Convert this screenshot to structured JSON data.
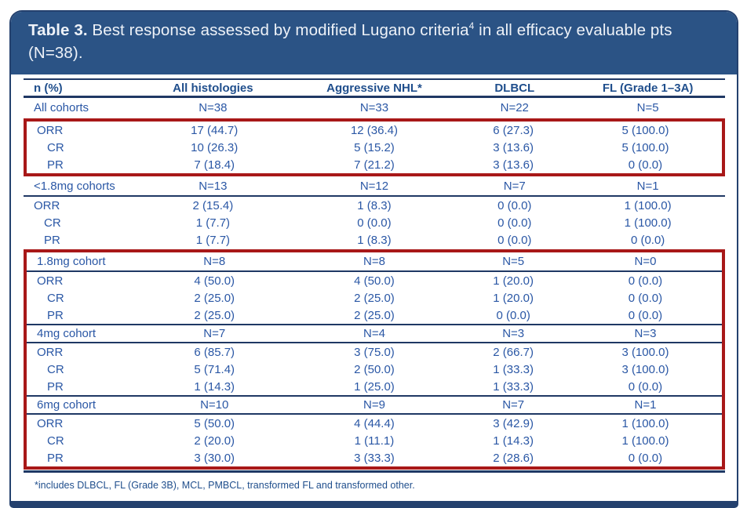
{
  "card": {
    "title": {
      "bold": "Table 3.",
      "before_sup": " Best response assessed by modified Lugano criteria",
      "sup": "4",
      "after_sup": " in all efficacy evaluable pts (N=38)."
    }
  },
  "table": {
    "columns": [
      "n (%)",
      "All histologies",
      "Aggressive NHL*",
      "DLBCL",
      "FL (Grade 1–3A)"
    ],
    "groups": [
      {
        "id": "all-cohorts",
        "n_row": [
          "All cohorts",
          "N=38",
          "N=33",
          "N=22",
          "N=5"
        ],
        "rows": [
          [
            "ORR",
            "17 (44.7)",
            "12 (36.4)",
            "6 (27.3)",
            "5 (100.0)"
          ],
          [
            "CR",
            "10 (26.3)",
            "5 (15.2)",
            "3 (13.6)",
            "5 (100.0)"
          ],
          [
            "PR",
            "7 (18.4)",
            "7 (21.2)",
            "3 (13.6)",
            "0 (0.0)"
          ]
        ],
        "rows_highlighted": true,
        "in_highlight_box": false
      },
      {
        "id": "lt-1.8mg-cohorts",
        "n_row": [
          "<1.8mg cohorts",
          "N=13",
          "N=12",
          "N=7",
          "N=1"
        ],
        "rows": [
          [
            "ORR",
            "2 (15.4)",
            "1 (8.3)",
            "0 (0.0)",
            "1 (100.0)"
          ],
          [
            "CR",
            "1 (7.7)",
            "0 (0.0)",
            "0 (0.0)",
            "1 (100.0)"
          ],
          [
            "PR",
            "1 (7.7)",
            "1 (8.3)",
            "0 (0.0)",
            "0 (0.0)"
          ]
        ],
        "rows_highlighted": false,
        "in_highlight_box": false
      },
      {
        "id": "1.8mg-cohort",
        "n_row": [
          "1.8mg cohort",
          "N=8",
          "N=8",
          "N=5",
          "N=0"
        ],
        "rows": [
          [
            "ORR",
            "4 (50.0)",
            "4 (50.0)",
            "1 (20.0)",
            "0 (0.0)"
          ],
          [
            "CR",
            "2 (25.0)",
            "2 (25.0)",
            "1 (20.0)",
            "0 (0.0)"
          ],
          [
            "PR",
            "2 (25.0)",
            "2 (25.0)",
            "0 (0.0)",
            "0 (0.0)"
          ]
        ],
        "rows_highlighted": false,
        "in_highlight_box": true
      },
      {
        "id": "4mg-cohort",
        "n_row": [
          "4mg cohort",
          "N=7",
          "N=4",
          "N=3",
          "N=3"
        ],
        "rows": [
          [
            "ORR",
            "6 (85.7)",
            "3 (75.0)",
            "2 (66.7)",
            "3 (100.0)"
          ],
          [
            "CR",
            "5 (71.4)",
            "2 (50.0)",
            "1 (33.3)",
            "3 (100.0)"
          ],
          [
            "PR",
            "1 (14.3)",
            "1 (25.0)",
            "1 (33.3)",
            "0 (0.0)"
          ]
        ],
        "rows_highlighted": false,
        "in_highlight_box": true
      },
      {
        "id": "6mg-cohort",
        "n_row": [
          "6mg cohort",
          "N=10",
          "N=9",
          "N=7",
          "N=1"
        ],
        "rows": [
          [
            "ORR",
            "5 (50.0)",
            "4 (44.4)",
            "3 (42.9)",
            "1 (100.0)"
          ],
          [
            "CR",
            "2 (20.0)",
            "1 (11.1)",
            "1 (14.3)",
            "1 (100.0)"
          ],
          [
            "PR",
            "3 (30.0)",
            "3 (33.3)",
            "2 (28.6)",
            "0 (0.0)"
          ]
        ],
        "rows_highlighted": false,
        "in_highlight_box": true
      }
    ]
  },
  "footnote": "*includes DLBCL, FL (Grade 3B), MCL, PMBCL, transformed FL and transformed other.",
  "colors": {
    "header_band_navy": "#2b5385",
    "rule_navy": "#1f3864",
    "border_navy": "#24416e",
    "cell_text_blue": "#2a57a5",
    "header_text_blue": "#1f4e8c",
    "highlight_red": "#a81818"
  }
}
